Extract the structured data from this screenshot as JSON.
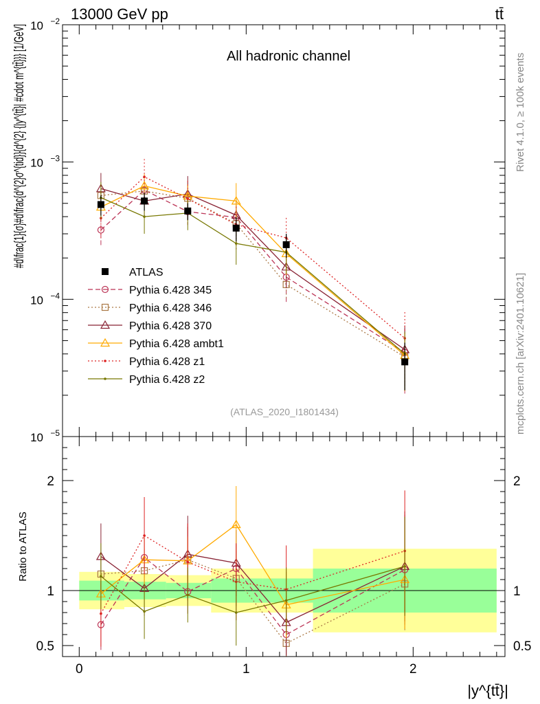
{
  "header": {
    "energy_label": "13000 GeV pp",
    "process_label": "tt̄"
  },
  "side_labels": {
    "rivet": "Rivet 4.1.0, ≥ 100k events",
    "mcplots": "mcplots.cern.ch [arXiv:2401.10621]"
  },
  "chart_data": {
    "type": "line",
    "title": "All hadronic channel",
    "analysis_id": "(ATLAS_2020_I1801434)",
    "xlabel": "|y^{tt̄}|",
    "ylabel": "#d\\frac{1}{σ}#d\\frac{d^{2}σ^{tid}}{d^{2} {|y^{tt̄}| #cdot m^{tt̄}}} [1/GeV]",
    "ratio_ylabel": "Ratio to ATLAS",
    "xlim": [
      -0.1,
      2.55
    ],
    "ylim": [
      1e-05,
      0.01
    ],
    "ylog": true,
    "ratio_ylim": [
      0.4,
      2.4
    ],
    "x_ticks": [
      0,
      1,
      2
    ],
    "y_ticks": [
      {
        "value": 1e-05,
        "base": "10",
        "exp": "−5"
      },
      {
        "value": 0.0001,
        "base": "10",
        "exp": "−4"
      },
      {
        "value": 0.001,
        "base": "10",
        "exp": "−3"
      },
      {
        "value": 0.01,
        "base": "10",
        "exp": "−2"
      }
    ],
    "ratio_ticks": [
      {
        "value": 0.5,
        "label": "0.5"
      },
      {
        "value": 1,
        "label": "1"
      },
      {
        "value": 2,
        "label": "2"
      }
    ],
    "bins": [
      {
        "lo": 0.0,
        "hi": 0.27
      },
      {
        "lo": 0.27,
        "hi": 0.52
      },
      {
        "lo": 0.52,
        "hi": 0.79
      },
      {
        "lo": 0.79,
        "hi": 1.1
      },
      {
        "lo": 1.1,
        "hi": 1.4
      },
      {
        "lo": 1.4,
        "hi": 2.5
      }
    ],
    "x": [
      0.13,
      0.39,
      0.65,
      0.94,
      1.24,
      1.95
    ],
    "data": {
      "name": "ATLAS",
      "values": [
        0.00049,
        0.00052,
        0.00044,
        0.00033,
        0.00025,
        3.5e-05
      ],
      "band_stat": [
        0.09,
        0.08,
        0.07,
        0.11,
        0.11,
        0.2
      ],
      "band_total": [
        0.17,
        0.15,
        0.14,
        0.2,
        0.2,
        0.38
      ]
    },
    "series": [
      {
        "name": "Pythia 6.428 345",
        "color": "#bb3355",
        "marker": "circle",
        "dash": "7,4",
        "values": [
          0.00032,
          0.000625,
          0.000435,
          0.000395,
          0.000145,
          4.1e-05
        ],
        "ratio": [
          0.69,
          1.3,
          0.99,
          1.2,
          0.6,
          1.19
        ],
        "ratio_err": [
          0.23,
          0.18,
          0.2,
          0.22,
          0.35,
          0.5
        ]
      },
      {
        "name": "Pythia 6.428 346",
        "color": "#aa7744",
        "marker": "square",
        "dash": "2,3",
        "values": [
          0.00057,
          0.000615,
          0.000545,
          0.000355,
          0.000128,
          3.8e-05
        ],
        "ratio": [
          1.15,
          1.18,
          1.28,
          1.11,
          0.52,
          1.06
        ],
        "ratio_err": [
          0.18,
          0.2,
          0.3,
          0.25,
          0.22,
          0.42
        ]
      },
      {
        "name": "Pythia 6.428 370",
        "color": "#882233",
        "marker": "triangle",
        "dash": "",
        "values": [
          0.00064,
          0.00052,
          0.000585,
          0.00041,
          0.000172,
          4.3e-05
        ],
        "ratio": [
          1.31,
          1.02,
          1.33,
          1.25,
          0.71,
          1.22
        ],
        "ratio_err": [
          0.3,
          0.25,
          0.35,
          0.3,
          0.3,
          0.5
        ]
      },
      {
        "name": "Pythia 6.428 ambt1",
        "color": "#ffaa00",
        "marker": "triangle",
        "dash": "",
        "values": [
          0.00047,
          0.00067,
          0.000565,
          0.00052,
          0.000215,
          3.9e-05
        ],
        "ratio": [
          0.97,
          1.28,
          1.27,
          1.6,
          0.87,
          1.1
        ],
        "ratio_err": [
          0.18,
          0.22,
          0.22,
          0.35,
          0.3,
          0.45
        ]
      },
      {
        "name": "Pythia 6.428 z1",
        "color": "#dd2222",
        "marker": "dot",
        "dash": "2,3",
        "values": [
          0.00039,
          0.00078,
          0.00054,
          0.00035,
          0.00028,
          5.2e-05
        ],
        "ratio": [
          0.79,
          1.5,
          1.26,
          1.08,
          1.01,
          1.36
        ],
        "ratio_err": [
          0.3,
          0.35,
          0.35,
          0.35,
          0.4,
          0.55
        ]
      },
      {
        "name": "Pythia 6.428 z2",
        "color": "#777700",
        "marker": "dot",
        "dash": "",
        "values": [
          0.00055,
          0.0004,
          0.000425,
          0.000255,
          0.00022,
          4e-05
        ],
        "ratio": [
          1.13,
          0.81,
          0.96,
          0.8,
          0.91,
          1.22
        ],
        "ratio_err": [
          0.3,
          0.25,
          0.25,
          0.3,
          0.3,
          0.45
        ]
      }
    ],
    "legend_position": "left-middle"
  }
}
